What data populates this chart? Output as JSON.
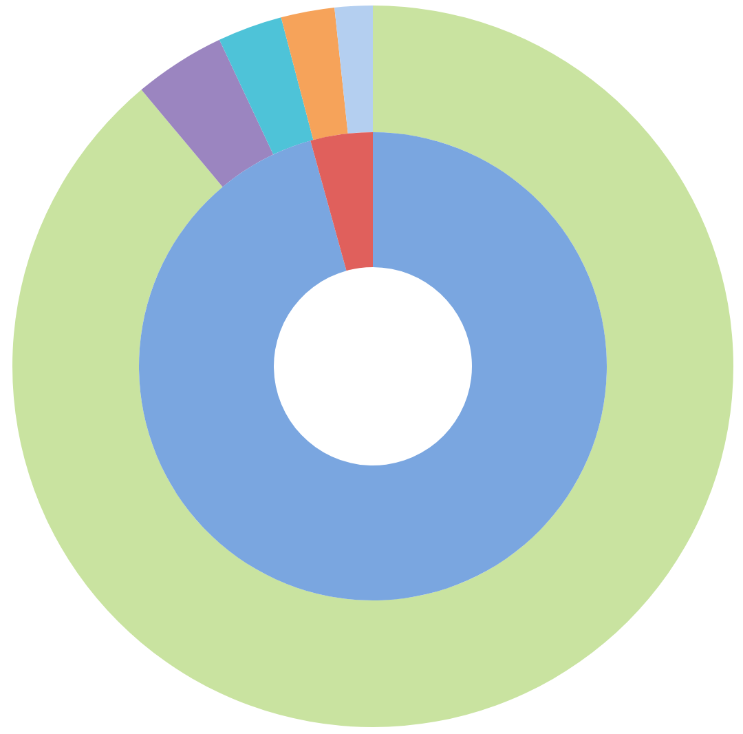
{
  "chart_data": [
    {
      "type": "donut",
      "categories": [
        null,
        null,
        null,
        null,
        null
      ],
      "values": [
        88.9,
        4.1,
        2.9,
        2.4,
        1.7
      ],
      "colors": [
        "#c9e3a0",
        "#9b85c0",
        "#4ec3d8",
        "#f6a35a",
        "#b4cff0"
      ],
      "legend": false
    },
    {
      "type": "donut",
      "categories": [
        null,
        null
      ],
      "values": [
        95.7,
        4.3
      ],
      "colors": [
        "#7aa6e0",
        "#e0605c"
      ],
      "legend": false
    }
  ]
}
